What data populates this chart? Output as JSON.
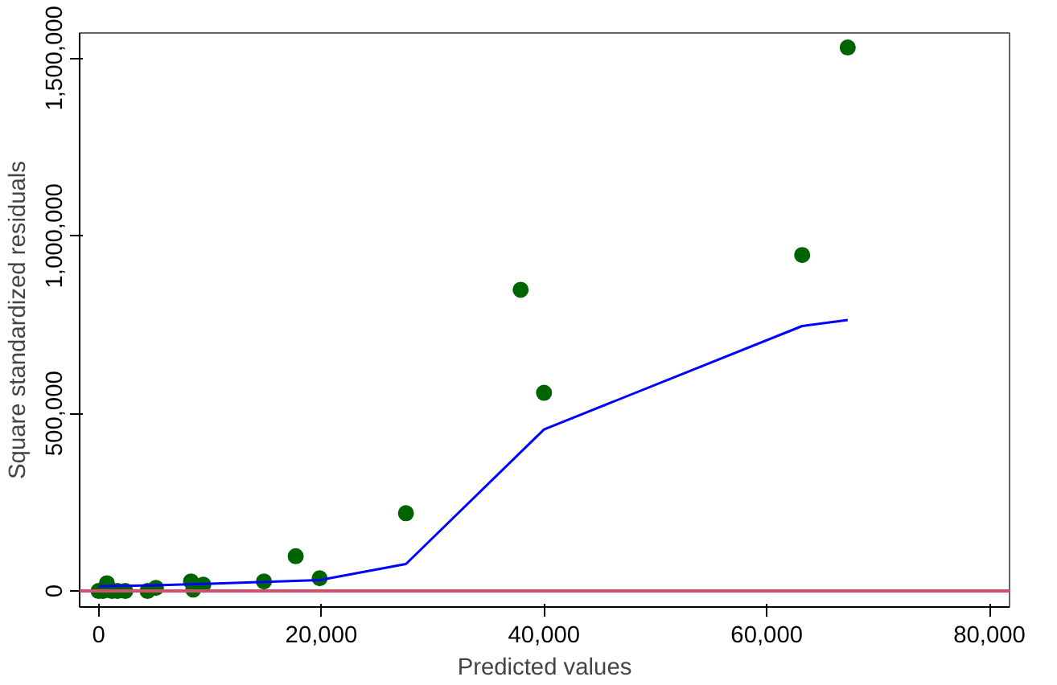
{
  "chart_data": {
    "type": "scatter",
    "xlabel": "Predicted values",
    "ylabel": "Square standardized residuals",
    "xlim": [
      -1700,
      81800
    ],
    "ylim": [
      -45000,
      1571000
    ],
    "xticks": [
      {
        "value": 0,
        "label": "0"
      },
      {
        "value": 20000,
        "label": "20,000"
      },
      {
        "value": 40000,
        "label": "40,000"
      },
      {
        "value": 60000,
        "label": "60,000"
      },
      {
        "value": 80000,
        "label": "80,000"
      }
    ],
    "yticks": [
      {
        "value": 0,
        "label": "0"
      },
      {
        "value": 500000,
        "label": "500,000"
      },
      {
        "value": 1000000,
        "label": "1,000,000"
      },
      {
        "value": 1500000,
        "label": "1,500,000"
      }
    ],
    "grid": false,
    "marker": "circle",
    "series": [
      {
        "color": "#006400",
        "x": [
          0,
          400,
          750,
          1200,
          1700,
          2400,
          4400,
          5150,
          8300,
          8500,
          9400,
          14850,
          17700,
          19850,
          27600,
          37900,
          40000,
          63180,
          67270
        ],
        "values": [
          0,
          0,
          22000,
          0,
          0,
          0,
          0,
          9000,
          27000,
          4000,
          18000,
          27000,
          98000,
          36000,
          219000,
          848000,
          558000,
          946000,
          1530000
        ]
      },
      {
        "type": "line",
        "color": "#0000ff",
        "line_style": "solid",
        "marker": "none",
        "x": [
          0,
          5000,
          9400,
          19850,
          27600,
          40000,
          63180,
          67270
        ],
        "values": [
          13000,
          16000,
          20000,
          31000,
          76000,
          455000,
          746000,
          763000
        ]
      }
    ],
    "ref_lines": [
      {
        "axis": "y",
        "value": 0,
        "color": "#d0506e",
        "line_style": "solid"
      }
    ]
  }
}
